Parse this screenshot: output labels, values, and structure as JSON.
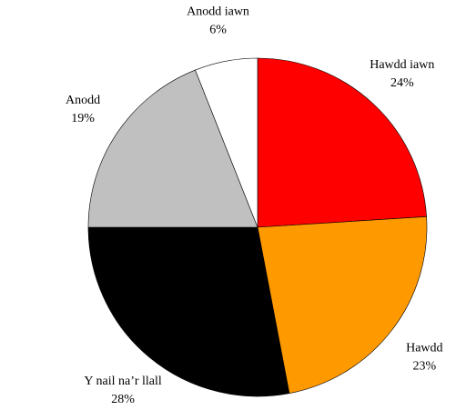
{
  "chart_data": {
    "type": "pie",
    "categories": [
      "Hawdd iawn",
      "Hawdd",
      "Y nail na’r llall",
      "Anodd",
      "Anodd iawn"
    ],
    "values": [
      24,
      23,
      28,
      19,
      6
    ],
    "value_labels": [
      "24%",
      "23%",
      "28%",
      "19%",
      "6%"
    ],
    "colors": [
      "#ff0000",
      "#ff9900",
      "#000000",
      "#c0c0c0",
      "#ffffff"
    ]
  }
}
